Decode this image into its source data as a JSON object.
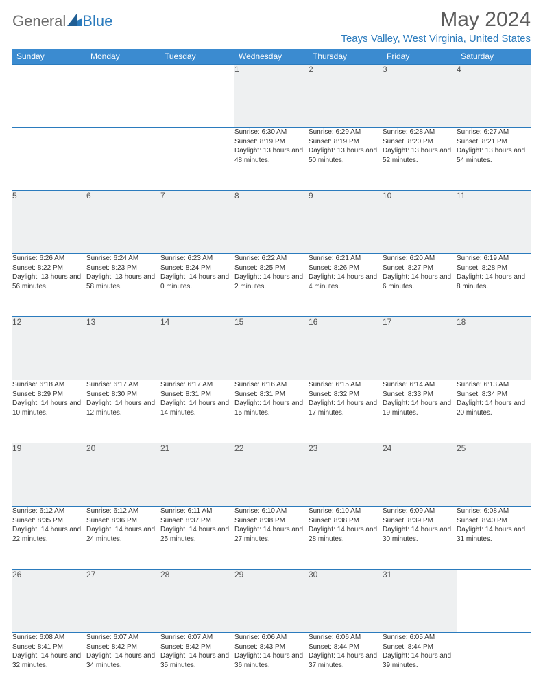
{
  "brand": {
    "part1": "General",
    "part2": "Blue"
  },
  "title": "May 2024",
  "location": "Teays Valley, West Virginia, United States",
  "colors": {
    "header_bg": "#3b8bd0",
    "accent": "#2b7bbd",
    "daynum_bg": "#eef0f1",
    "text": "#333333",
    "title_text": "#5c5c5c"
  },
  "dayNames": [
    "Sunday",
    "Monday",
    "Tuesday",
    "Wednesday",
    "Thursday",
    "Friday",
    "Saturday"
  ],
  "weeks": [
    [
      null,
      null,
      null,
      {
        "n": "1",
        "sunrise": "6:30 AM",
        "sunset": "8:19 PM",
        "daylight": "13 hours and 48 minutes."
      },
      {
        "n": "2",
        "sunrise": "6:29 AM",
        "sunset": "8:19 PM",
        "daylight": "13 hours and 50 minutes."
      },
      {
        "n": "3",
        "sunrise": "6:28 AM",
        "sunset": "8:20 PM",
        "daylight": "13 hours and 52 minutes."
      },
      {
        "n": "4",
        "sunrise": "6:27 AM",
        "sunset": "8:21 PM",
        "daylight": "13 hours and 54 minutes."
      }
    ],
    [
      {
        "n": "5",
        "sunrise": "6:26 AM",
        "sunset": "8:22 PM",
        "daylight": "13 hours and 56 minutes."
      },
      {
        "n": "6",
        "sunrise": "6:24 AM",
        "sunset": "8:23 PM",
        "daylight": "13 hours and 58 minutes."
      },
      {
        "n": "7",
        "sunrise": "6:23 AM",
        "sunset": "8:24 PM",
        "daylight": "14 hours and 0 minutes."
      },
      {
        "n": "8",
        "sunrise": "6:22 AM",
        "sunset": "8:25 PM",
        "daylight": "14 hours and 2 minutes."
      },
      {
        "n": "9",
        "sunrise": "6:21 AM",
        "sunset": "8:26 PM",
        "daylight": "14 hours and 4 minutes."
      },
      {
        "n": "10",
        "sunrise": "6:20 AM",
        "sunset": "8:27 PM",
        "daylight": "14 hours and 6 minutes."
      },
      {
        "n": "11",
        "sunrise": "6:19 AM",
        "sunset": "8:28 PM",
        "daylight": "14 hours and 8 minutes."
      }
    ],
    [
      {
        "n": "12",
        "sunrise": "6:18 AM",
        "sunset": "8:29 PM",
        "daylight": "14 hours and 10 minutes."
      },
      {
        "n": "13",
        "sunrise": "6:17 AM",
        "sunset": "8:30 PM",
        "daylight": "14 hours and 12 minutes."
      },
      {
        "n": "14",
        "sunrise": "6:17 AM",
        "sunset": "8:31 PM",
        "daylight": "14 hours and 14 minutes."
      },
      {
        "n": "15",
        "sunrise": "6:16 AM",
        "sunset": "8:31 PM",
        "daylight": "14 hours and 15 minutes."
      },
      {
        "n": "16",
        "sunrise": "6:15 AM",
        "sunset": "8:32 PM",
        "daylight": "14 hours and 17 minutes."
      },
      {
        "n": "17",
        "sunrise": "6:14 AM",
        "sunset": "8:33 PM",
        "daylight": "14 hours and 19 minutes."
      },
      {
        "n": "18",
        "sunrise": "6:13 AM",
        "sunset": "8:34 PM",
        "daylight": "14 hours and 20 minutes."
      }
    ],
    [
      {
        "n": "19",
        "sunrise": "6:12 AM",
        "sunset": "8:35 PM",
        "daylight": "14 hours and 22 minutes."
      },
      {
        "n": "20",
        "sunrise": "6:12 AM",
        "sunset": "8:36 PM",
        "daylight": "14 hours and 24 minutes."
      },
      {
        "n": "21",
        "sunrise": "6:11 AM",
        "sunset": "8:37 PM",
        "daylight": "14 hours and 25 minutes."
      },
      {
        "n": "22",
        "sunrise": "6:10 AM",
        "sunset": "8:38 PM",
        "daylight": "14 hours and 27 minutes."
      },
      {
        "n": "23",
        "sunrise": "6:10 AM",
        "sunset": "8:38 PM",
        "daylight": "14 hours and 28 minutes."
      },
      {
        "n": "24",
        "sunrise": "6:09 AM",
        "sunset": "8:39 PM",
        "daylight": "14 hours and 30 minutes."
      },
      {
        "n": "25",
        "sunrise": "6:08 AM",
        "sunset": "8:40 PM",
        "daylight": "14 hours and 31 minutes."
      }
    ],
    [
      {
        "n": "26",
        "sunrise": "6:08 AM",
        "sunset": "8:41 PM",
        "daylight": "14 hours and 32 minutes."
      },
      {
        "n": "27",
        "sunrise": "6:07 AM",
        "sunset": "8:42 PM",
        "daylight": "14 hours and 34 minutes."
      },
      {
        "n": "28",
        "sunrise": "6:07 AM",
        "sunset": "8:42 PM",
        "daylight": "14 hours and 35 minutes."
      },
      {
        "n": "29",
        "sunrise": "6:06 AM",
        "sunset": "8:43 PM",
        "daylight": "14 hours and 36 minutes."
      },
      {
        "n": "30",
        "sunrise": "6:06 AM",
        "sunset": "8:44 PM",
        "daylight": "14 hours and 37 minutes."
      },
      {
        "n": "31",
        "sunrise": "6:05 AM",
        "sunset": "8:44 PM",
        "daylight": "14 hours and 39 minutes."
      },
      null
    ]
  ],
  "labels": {
    "sunrise": "Sunrise:",
    "sunset": "Sunset:",
    "daylight": "Daylight:"
  }
}
